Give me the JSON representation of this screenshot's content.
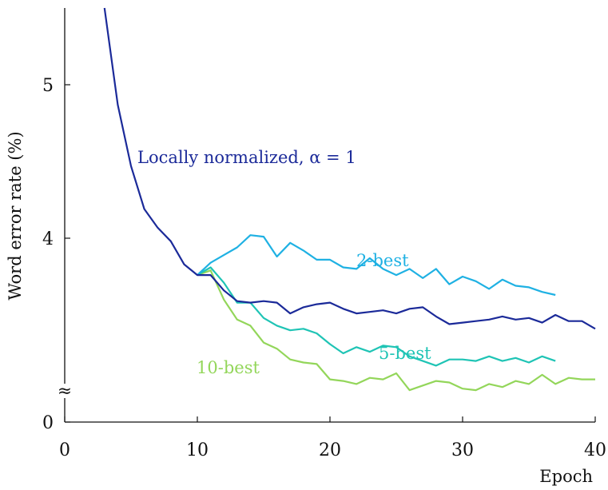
{
  "chart_data": {
    "type": "line",
    "title": "",
    "xlabel": "Epoch",
    "ylabel": "Word error rate (%)",
    "xlim": [
      0,
      40
    ],
    "x_ticks": [
      "0",
      "10",
      "20",
      "30",
      "40"
    ],
    "y_ticks": [
      "0",
      "4",
      "5"
    ],
    "axis_break_symbol": "≈",
    "ylim_upper_segment": [
      3.0,
      5.5
    ],
    "grid": false,
    "legend": "inline labels",
    "series": [
      {
        "name": "Locally normalized, α = 1",
        "color": "#1b2a99",
        "x": [
          3,
          4,
          5,
          6,
          7,
          8,
          9,
          10,
          11,
          12,
          13,
          14,
          15,
          16,
          17,
          18,
          19,
          20,
          21,
          22,
          23,
          24,
          25,
          26,
          27,
          28,
          29,
          30,
          31,
          32,
          33,
          34,
          35,
          36,
          37,
          38,
          39,
          40
        ],
        "y": [
          5.5,
          4.87,
          4.47,
          4.19,
          4.07,
          3.98,
          3.83,
          3.76,
          3.76,
          3.66,
          3.59,
          3.58,
          3.59,
          3.58,
          3.51,
          3.55,
          3.57,
          3.58,
          3.54,
          3.51,
          3.52,
          3.53,
          3.51,
          3.54,
          3.55,
          3.49,
          3.44,
          3.45,
          3.46,
          3.47,
          3.49,
          3.47,
          3.48,
          3.45,
          3.5,
          3.46,
          3.46,
          3.41
        ]
      },
      {
        "name": "2-best",
        "color": "#1fb1e3",
        "x": [
          10,
          11,
          12,
          13,
          14,
          15,
          16,
          17,
          18,
          19,
          20,
          21,
          22,
          23,
          24,
          25,
          26,
          27,
          28,
          29,
          30,
          31,
          32,
          33,
          34,
          35,
          36,
          37
        ],
        "y": [
          3.76,
          3.84,
          3.89,
          3.94,
          4.02,
          4.01,
          3.88,
          3.97,
          3.92,
          3.86,
          3.86,
          3.81,
          3.8,
          3.87,
          3.8,
          3.76,
          3.8,
          3.74,
          3.8,
          3.7,
          3.75,
          3.72,
          3.67,
          3.73,
          3.69,
          3.68,
          3.65,
          3.63
        ]
      },
      {
        "name": "5-best",
        "color": "#1fc4b5",
        "x": [
          10,
          11,
          12,
          13,
          14,
          15,
          16,
          17,
          18,
          19,
          20,
          21,
          22,
          23,
          24,
          25,
          26,
          27,
          28,
          29,
          30,
          31,
          32,
          33,
          34,
          35,
          36,
          37
        ],
        "y": [
          3.76,
          3.81,
          3.71,
          3.58,
          3.58,
          3.48,
          3.43,
          3.4,
          3.41,
          3.38,
          3.31,
          3.25,
          3.29,
          3.26,
          3.3,
          3.29,
          3.23,
          3.2,
          3.17,
          3.21,
          3.21,
          3.2,
          3.23,
          3.2,
          3.22,
          3.19,
          3.23,
          3.2
        ]
      },
      {
        "name": "10-best",
        "color": "#93d65a",
        "x": [
          10,
          11,
          12,
          13,
          14,
          15,
          16,
          17,
          18,
          19,
          20,
          21,
          22,
          23,
          24,
          25,
          26,
          27,
          28,
          29,
          30,
          31,
          32,
          33,
          34,
          35,
          36,
          37,
          38,
          39,
          40
        ],
        "y": [
          3.76,
          3.79,
          3.6,
          3.47,
          3.43,
          3.32,
          3.28,
          3.21,
          3.19,
          3.18,
          3.08,
          3.07,
          3.05,
          3.09,
          3.08,
          3.12,
          3.01,
          3.04,
          3.07,
          3.06,
          3.02,
          3.01,
          3.05,
          3.03,
          3.07,
          3.05,
          3.11,
          3.05,
          3.09,
          3.08,
          3.08
        ]
      }
    ]
  }
}
